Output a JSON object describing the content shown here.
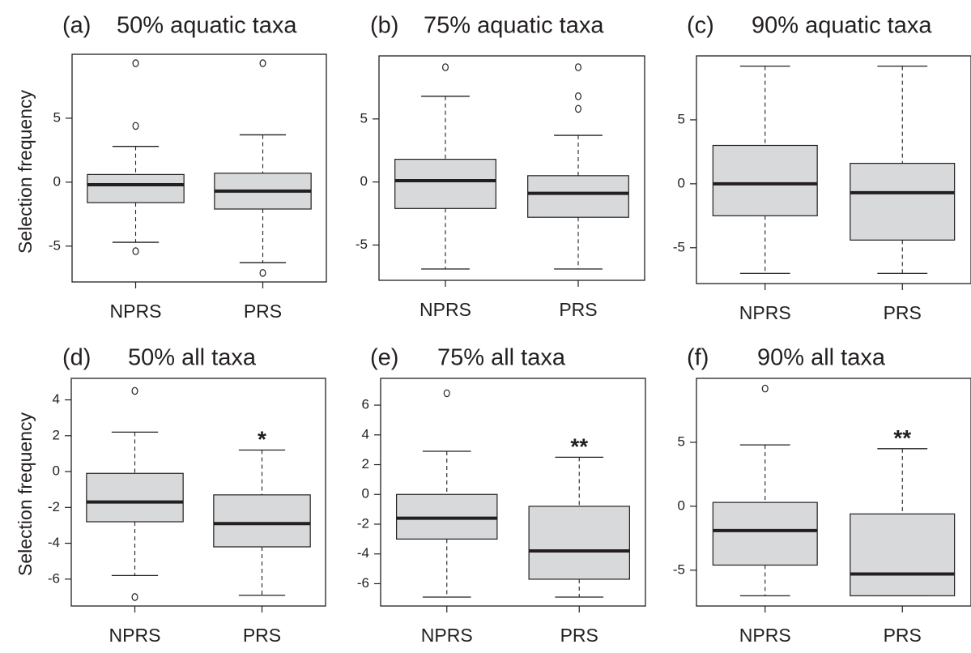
{
  "ylabel": "Selection frequency",
  "chart_data": [
    {
      "type": "box",
      "letter": "(a)",
      "title": "50% aquatic taxa",
      "ylabel": "Selection frequency",
      "ylim": [
        -7.8,
        10
      ],
      "yticks": [
        -5,
        0,
        5
      ],
      "categories": [
        "NPRS",
        "PRS"
      ],
      "boxes": [
        {
          "category": "NPRS",
          "whisker_low": -4.7,
          "q1": -1.6,
          "median": -0.2,
          "q3": 0.6,
          "whisker_high": 2.8,
          "outliers": [
            -5.4,
            4.4,
            9.3
          ]
        },
        {
          "category": "PRS",
          "whisker_low": -6.3,
          "q1": -2.1,
          "median": -0.7,
          "q3": 0.7,
          "whisker_high": 3.7,
          "outliers": [
            -7.1,
            9.3
          ]
        }
      ],
      "significance": [
        "",
        ""
      ]
    },
    {
      "type": "box",
      "letter": "(b)",
      "title": "75% aquatic taxa",
      "ylabel": "",
      "ylim": [
        -7.8,
        10
      ],
      "yticks": [
        -5,
        0,
        5
      ],
      "categories": [
        "NPRS",
        "PRS"
      ],
      "boxes": [
        {
          "category": "NPRS",
          "whisker_low": -6.9,
          "q1": -2.1,
          "median": 0.1,
          "q3": 1.8,
          "whisker_high": 6.8,
          "outliers": [
            9.1
          ]
        },
        {
          "category": "PRS",
          "whisker_low": -6.9,
          "q1": -2.8,
          "median": -0.9,
          "q3": 0.5,
          "whisker_high": 3.7,
          "outliers": [
            5.8,
            6.8,
            9.1
          ]
        }
      ],
      "significance": [
        "",
        ""
      ]
    },
    {
      "type": "box",
      "letter": "(c)",
      "title": "90% aquatic taxa",
      "ylabel": "",
      "ylim": [
        -7.8,
        10
      ],
      "yticks": [
        -5,
        0,
        5
      ],
      "categories": [
        "NPRS",
        "PRS"
      ],
      "boxes": [
        {
          "category": "NPRS",
          "whisker_low": -7.0,
          "q1": -2.5,
          "median": 0.0,
          "q3": 3.0,
          "whisker_high": 9.2,
          "outliers": []
        },
        {
          "category": "PRS",
          "whisker_low": -7.0,
          "q1": -4.4,
          "median": -0.7,
          "q3": 1.6,
          "whisker_high": 9.2,
          "outliers": []
        }
      ],
      "significance": [
        "",
        ""
      ]
    },
    {
      "type": "box",
      "letter": "(d)",
      "title": "50% all taxa",
      "ylabel": "Selection frequency",
      "ylim": [
        -7.5,
        5.2
      ],
      "yticks": [
        -6,
        -4,
        -2,
        0,
        2,
        4
      ],
      "categories": [
        "NPRS",
        "PRS"
      ],
      "boxes": [
        {
          "category": "NPRS",
          "whisker_low": -5.8,
          "q1": -2.8,
          "median": -1.7,
          "q3": -0.1,
          "whisker_high": 2.2,
          "outliers": [
            -7.0,
            4.5
          ]
        },
        {
          "category": "PRS",
          "whisker_low": -6.9,
          "q1": -4.2,
          "median": -2.9,
          "q3": -1.3,
          "whisker_high": 1.2,
          "outliers": []
        }
      ],
      "significance": [
        "",
        "*"
      ]
    },
    {
      "type": "box",
      "letter": "(e)",
      "title": "75% all taxa",
      "ylabel": "",
      "ylim": [
        -7.5,
        7.8
      ],
      "yticks": [
        -6,
        -4,
        -2,
        0,
        2,
        4,
        6
      ],
      "categories": [
        "NPRS",
        "PRS"
      ],
      "boxes": [
        {
          "category": "NPRS",
          "whisker_low": -6.9,
          "q1": -3.0,
          "median": -1.6,
          "q3": 0.0,
          "whisker_high": 2.9,
          "outliers": [
            6.8
          ]
        },
        {
          "category": "PRS",
          "whisker_low": -6.9,
          "q1": -5.7,
          "median": -3.8,
          "q3": -0.8,
          "whisker_high": 2.5,
          "outliers": []
        }
      ],
      "significance": [
        "",
        "**"
      ]
    },
    {
      "type": "box",
      "letter": "(f)",
      "title": "90% all taxa",
      "ylabel": "",
      "ylim": [
        -7.8,
        10
      ],
      "yticks": [
        -5,
        0,
        5
      ],
      "categories": [
        "NPRS",
        "PRS"
      ],
      "boxes": [
        {
          "category": "NPRS",
          "whisker_low": -7.0,
          "q1": -4.6,
          "median": -1.9,
          "q3": 0.3,
          "whisker_high": 4.8,
          "outliers": [
            9.2
          ]
        },
        {
          "category": "PRS",
          "whisker_low": -7.0,
          "q1": -7.0,
          "median": -5.3,
          "q3": -0.6,
          "whisker_high": 4.5,
          "outliers": []
        }
      ],
      "significance": [
        "",
        "**"
      ]
    }
  ]
}
